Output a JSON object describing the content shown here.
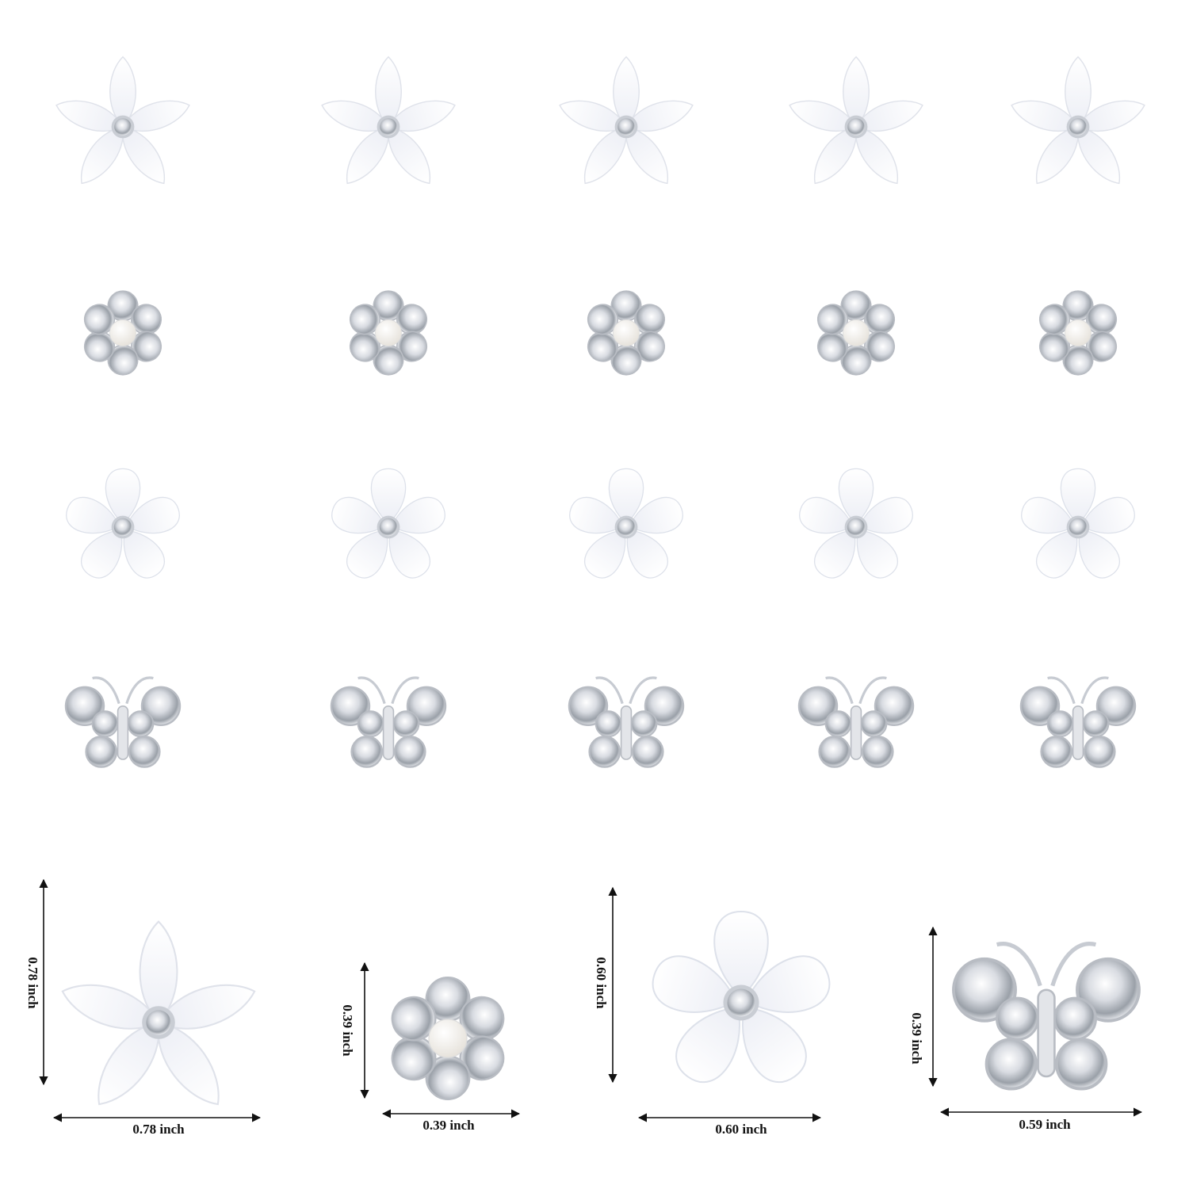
{
  "dimensions": [
    {
      "height": "0.78 inch",
      "width": "0.78 inch"
    },
    {
      "height": "0.39 inch",
      "width": "0.39 inch"
    },
    {
      "height": "0.60 inch",
      "width": "0.60 inch"
    },
    {
      "height": "0.39 inch",
      "width": "0.59 inch"
    }
  ]
}
